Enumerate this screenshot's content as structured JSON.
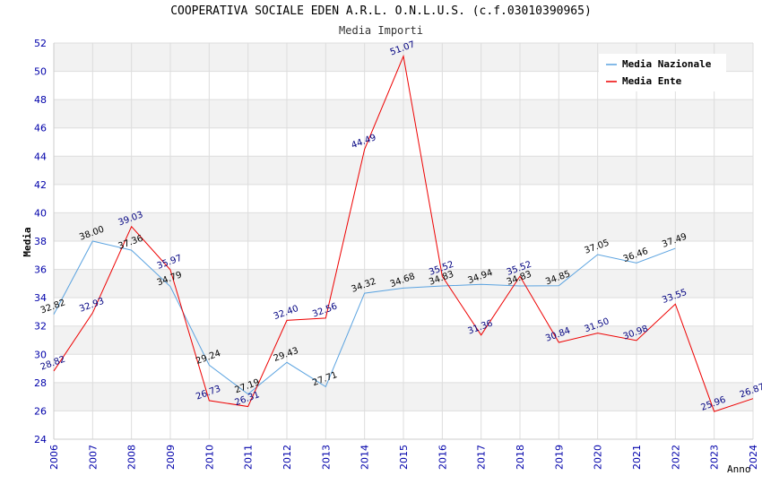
{
  "chart_data": {
    "type": "line",
    "title": "COOPERATIVA SOCIALE EDEN A.R.L. O.N.L.U.S. (c.f.03010390965)",
    "subtitle": "Media Importi",
    "xlabel": "Anno",
    "ylabel": "Media",
    "ylim": [
      24,
      52
    ],
    "yticks": [
      "24",
      "26",
      "28",
      "30",
      "32",
      "34",
      "36",
      "38",
      "40",
      "42",
      "44",
      "46",
      "48",
      "50",
      "52"
    ],
    "categories": [
      "2006",
      "2007",
      "2008",
      "2009",
      "2010",
      "2011",
      "2012",
      "2013",
      "2014",
      "2015",
      "2016",
      "2017",
      "2018",
      "2019",
      "2020",
      "2021",
      "2022",
      "2023",
      "2024"
    ],
    "legend_position": "top-right",
    "series": [
      {
        "name": "Media Nazionale",
        "color": "#5ba3e0",
        "values": [
          32.82,
          38.0,
          37.36,
          34.79,
          29.24,
          27.19,
          29.43,
          27.71,
          34.32,
          34.68,
          34.83,
          34.94,
          34.83,
          34.85,
          37.05,
          36.46,
          37.49,
          null,
          null
        ],
        "labels": [
          "32.82",
          "38.00",
          "37.36",
          "34.79",
          "29.24",
          "27.19",
          "29.43",
          "27.71",
          "34.32",
          "34.68",
          "34.83",
          "34.94",
          "34.83",
          "34.85",
          "37.05",
          "36.46",
          "37.49",
          "",
          ""
        ]
      },
      {
        "name": "Media Ente",
        "color": "#ee0000",
        "values": [
          28.82,
          32.93,
          39.03,
          35.97,
          26.73,
          26.31,
          32.4,
          32.56,
          44.49,
          51.07,
          35.52,
          31.36,
          35.52,
          30.84,
          31.5,
          30.98,
          33.55,
          25.96,
          26.87
        ],
        "labels": [
          "28.82",
          "32.93",
          "39.03",
          "35.97",
          "26.73",
          "26.31",
          "32.40",
          "32.56",
          "44.49",
          "51.07",
          "35.52",
          "31.36",
          "35.52",
          "30.84",
          "31.50",
          "30.98",
          "33.55",
          "25.96",
          "26.87"
        ]
      }
    ]
  }
}
